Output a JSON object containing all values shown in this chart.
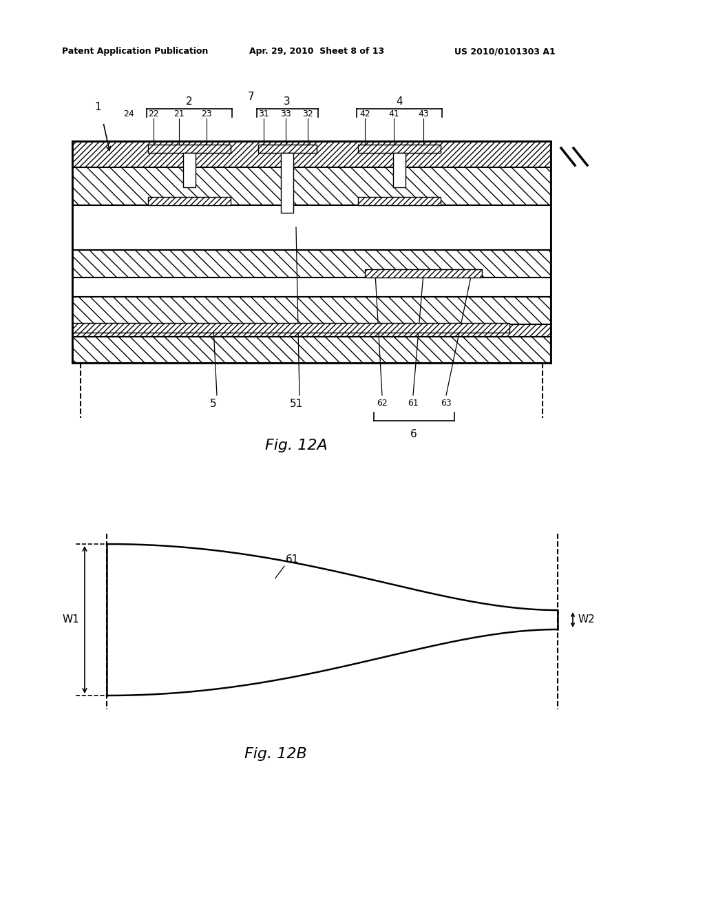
{
  "background_color": "#ffffff",
  "header_left": "Patent Application Publication",
  "header_center": "Apr. 29, 2010  Sheet 8 of 13",
  "header_right": "US 2010/0101303 A1",
  "fig12a_caption": "Fig. 12A",
  "fig12b_caption": "Fig. 12B",
  "label_W1": "W1",
  "label_W2": "W2",
  "label_61b": "61"
}
